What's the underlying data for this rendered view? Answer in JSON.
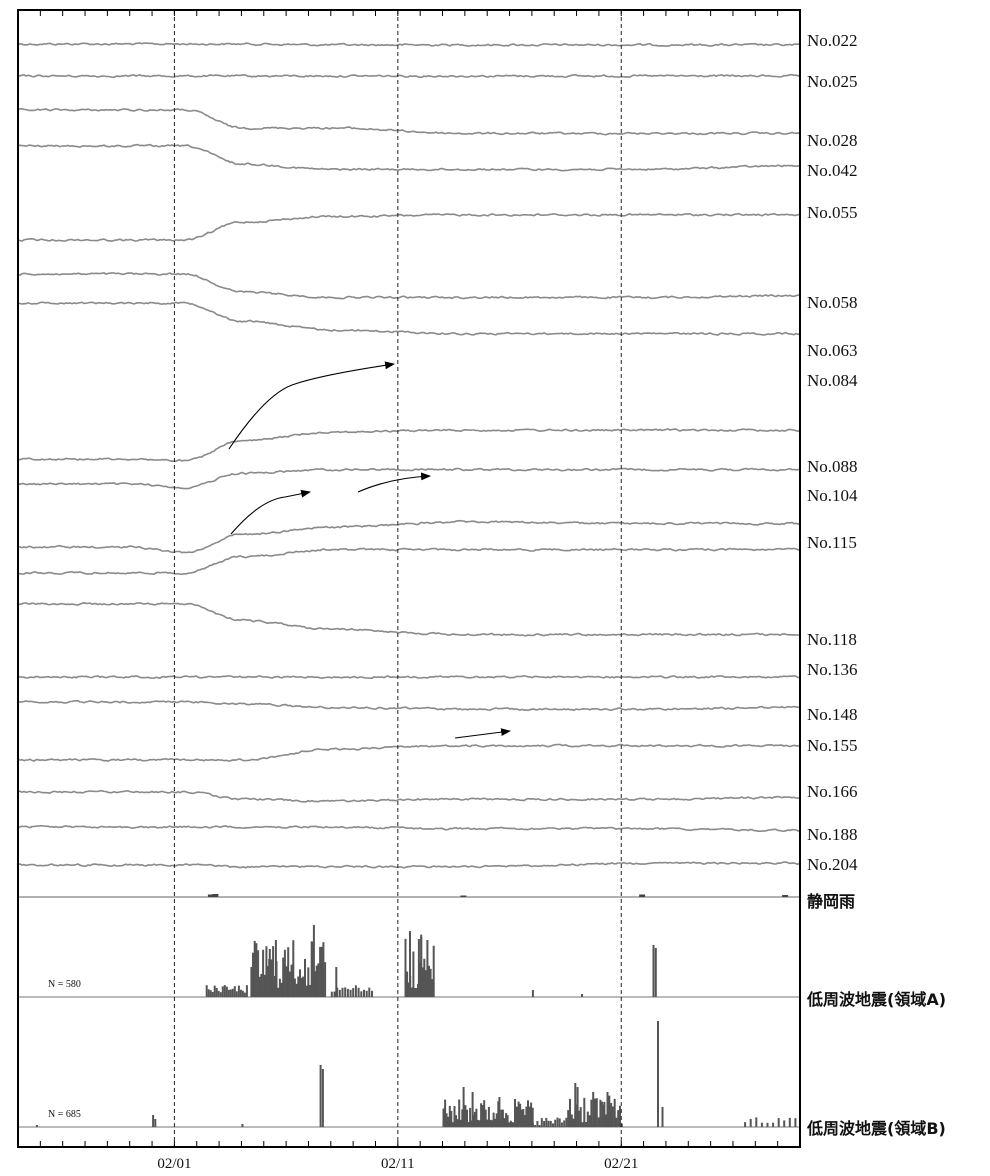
{
  "chart_data": {
    "type": "line",
    "title": "",
    "x_ticks": [
      "02/01",
      "02/11",
      "02/21"
    ],
    "stations": [
      {
        "name": "No.022",
        "shape": [
          0,
          0,
          0,
          0,
          0.05,
          0.05,
          0.05,
          0.05
        ]
      },
      {
        "name": "No.025",
        "shape": [
          0,
          0,
          0,
          0,
          0,
          0,
          0,
          0
        ]
      },
      {
        "name": "No.028",
        "shape": [
          0,
          0,
          0,
          1,
          1,
          1.3,
          1.3,
          1.3
        ]
      },
      {
        "name": "No.042",
        "shape": [
          0,
          0,
          0,
          1,
          1.3,
          1.3,
          1.3,
          1.1
        ]
      },
      {
        "name": "No.055",
        "shape": [
          0,
          0,
          0,
          -1,
          -1.3,
          -1.4,
          -1.4,
          -1.4
        ]
      },
      {
        "name": "No.058",
        "shape": [
          0,
          0,
          0,
          1,
          1.3,
          1.3,
          1.3,
          1.2
        ]
      },
      {
        "name": "No.063",
        "shape": [
          0,
          0,
          0,
          1,
          1.5,
          1.7,
          1.7,
          1.7
        ]
      },
      {
        "name": "No.084",
        "shape": [
          0,
          0,
          0.1,
          -1,
          -1.5,
          -1.6,
          -1.6,
          -1.6
        ]
      },
      {
        "name": "No.088",
        "shape": [
          0,
          0,
          0.2,
          -0.6,
          -0.8,
          -0.8,
          -0.8,
          -0.8
        ]
      },
      {
        "name": "No.104",
        "shape": [
          0,
          0,
          0.3,
          -0.7,
          -1.1,
          -1.4,
          -1.3,
          -1.3
        ]
      },
      {
        "name": "No.115",
        "shape": [
          0,
          0,
          0,
          -0.9,
          -1.3,
          -1.3,
          -1.3,
          -1.3
        ]
      },
      {
        "name": "No.118",
        "shape": [
          0,
          0,
          0,
          0.9,
          1.4,
          1.7,
          1.7,
          1.7
        ]
      },
      {
        "name": "No.136",
        "shape": [
          0,
          0,
          0,
          0,
          0,
          0,
          0,
          0
        ]
      },
      {
        "name": "No.148",
        "shape": [
          0,
          0,
          0,
          0.1,
          0.3,
          0.4,
          0.4,
          0.3
        ]
      },
      {
        "name": "No.155",
        "shape": [
          0,
          0,
          0,
          0,
          -0.6,
          -0.8,
          -0.8,
          -0.8
        ]
      },
      {
        "name": "No.166",
        "shape": [
          0,
          0,
          0,
          0.4,
          0.5,
          0.4,
          0.4,
          0.3
        ]
      },
      {
        "name": "No.188",
        "shape": [
          0,
          0,
          0,
          0,
          0,
          0.1,
          0.1,
          0.2
        ]
      },
      {
        "name": "No.204",
        "shape": [
          0,
          0,
          0,
          0.1,
          0.1,
          0.1,
          -0.1,
          -0.1
        ]
      }
    ],
    "rain": {
      "name": "静岡雨"
    },
    "lfe_a": {
      "name": "低周波地震(領域A)",
      "N": "N =   580"
    },
    "lfe_b": {
      "name": "低周波地震(領域B)",
      "N": "N =   685"
    },
    "grid": "dashed vertical lines at 02/01, 02/11, 02/21"
  }
}
